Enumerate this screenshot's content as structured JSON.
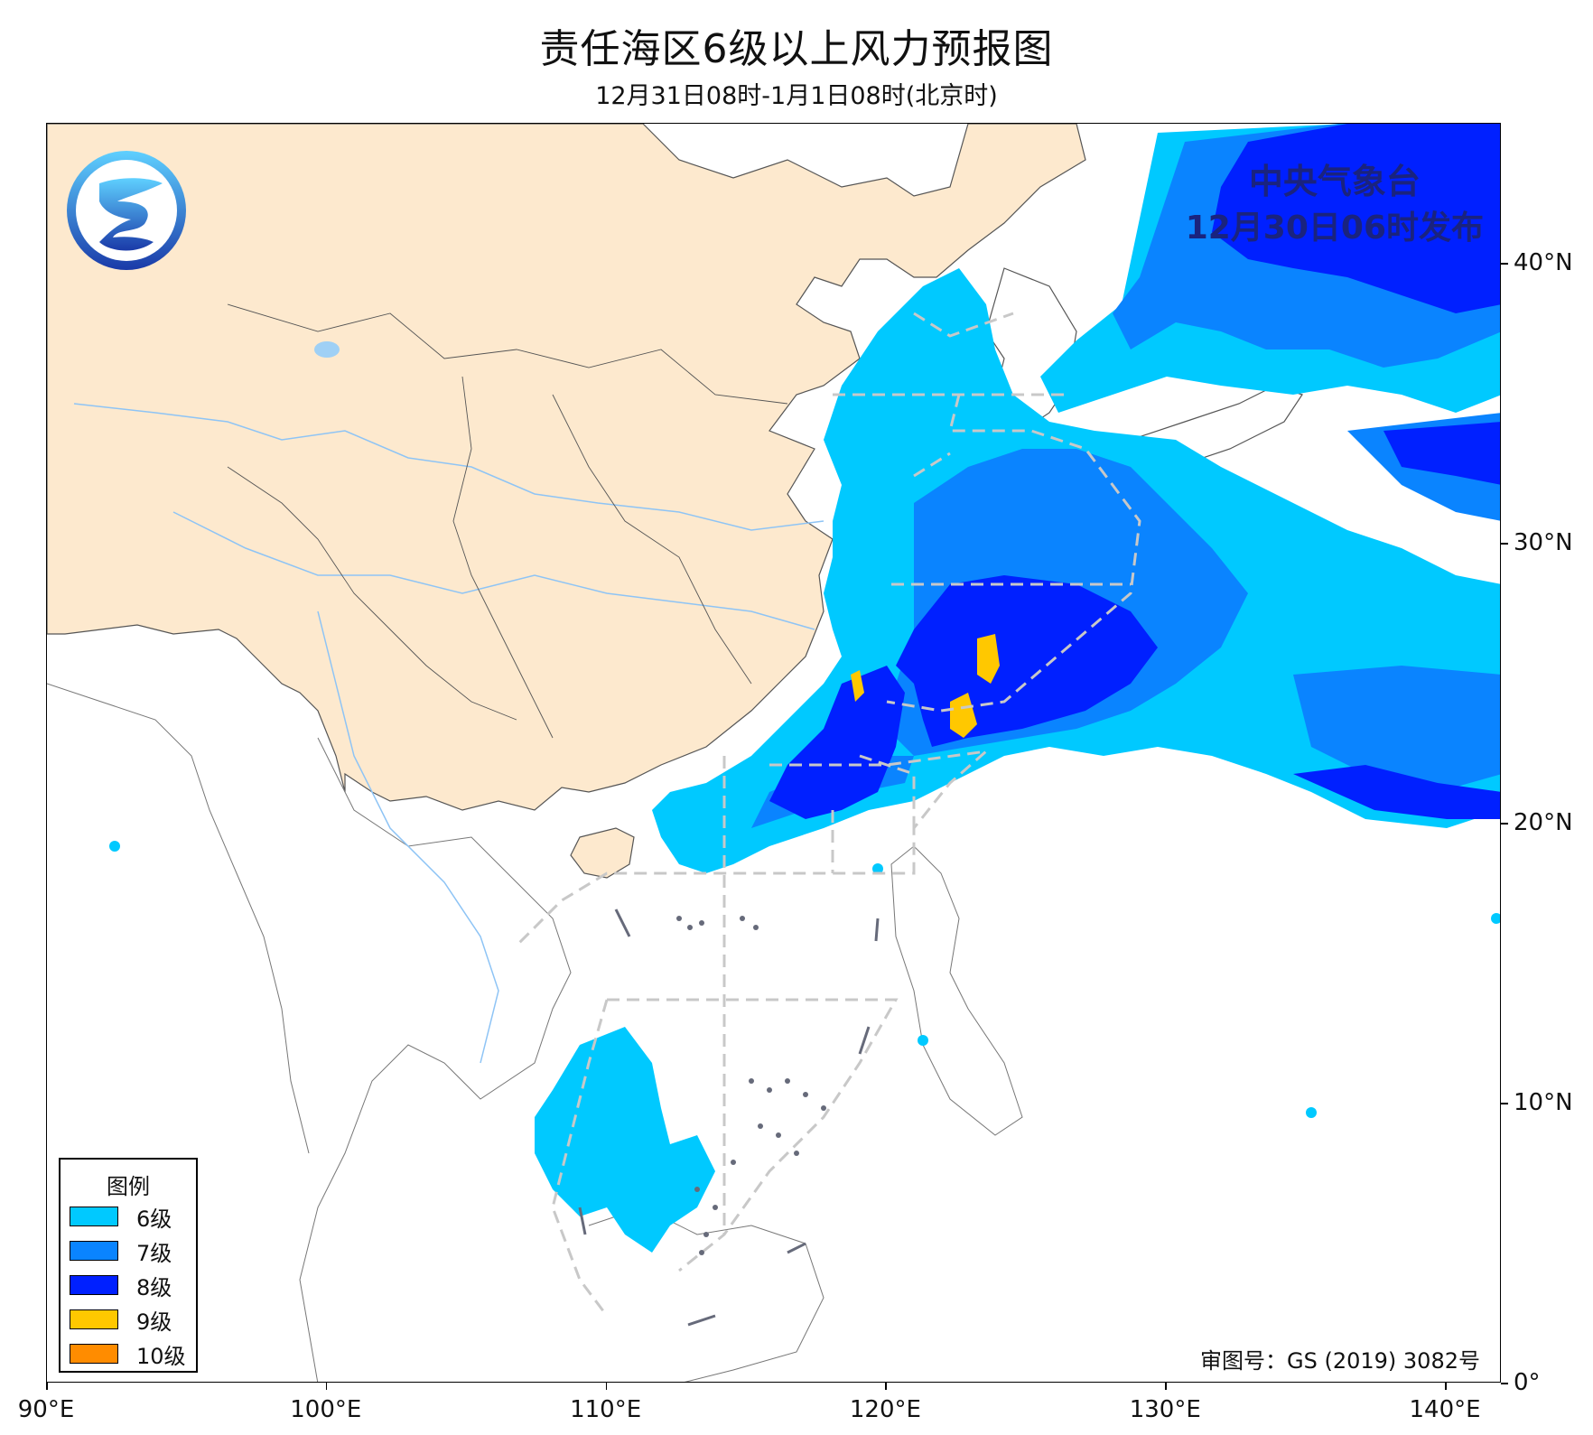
{
  "title": "责任海区6级以上风力预报图",
  "subtitle": "12月31日08时-1月1日08时(北京时)",
  "publisher": {
    "agency": "中央气象台",
    "issued": "12月30日06时发布"
  },
  "approval_number": "审图号：GS (2019) 3082号",
  "map": {
    "lon_range": [
      90,
      142
    ],
    "lat_range": [
      0,
      45
    ],
    "x_ticks": [
      "90°E",
      "100°E",
      "110°E",
      "120°E",
      "130°E",
      "140°E"
    ],
    "y_ticks": [
      "0°",
      "10°N",
      "20°N",
      "30°N",
      "40°N"
    ],
    "colors": {
      "land_china": "#fde9ce",
      "water": "#9fd0f5",
      "border": "#444444",
      "zone_line": "#c8c8c8"
    }
  },
  "legend": {
    "title": "图例",
    "items": [
      {
        "label": "6级",
        "color": "#00c9ff"
      },
      {
        "label": "7级",
        "color": "#0a84ff"
      },
      {
        "label": "8级",
        "color": "#0020ff"
      },
      {
        "label": "9级",
        "color": "#ffc800"
      },
      {
        "label": "10级",
        "color": "#ff8c00"
      }
    ]
  }
}
